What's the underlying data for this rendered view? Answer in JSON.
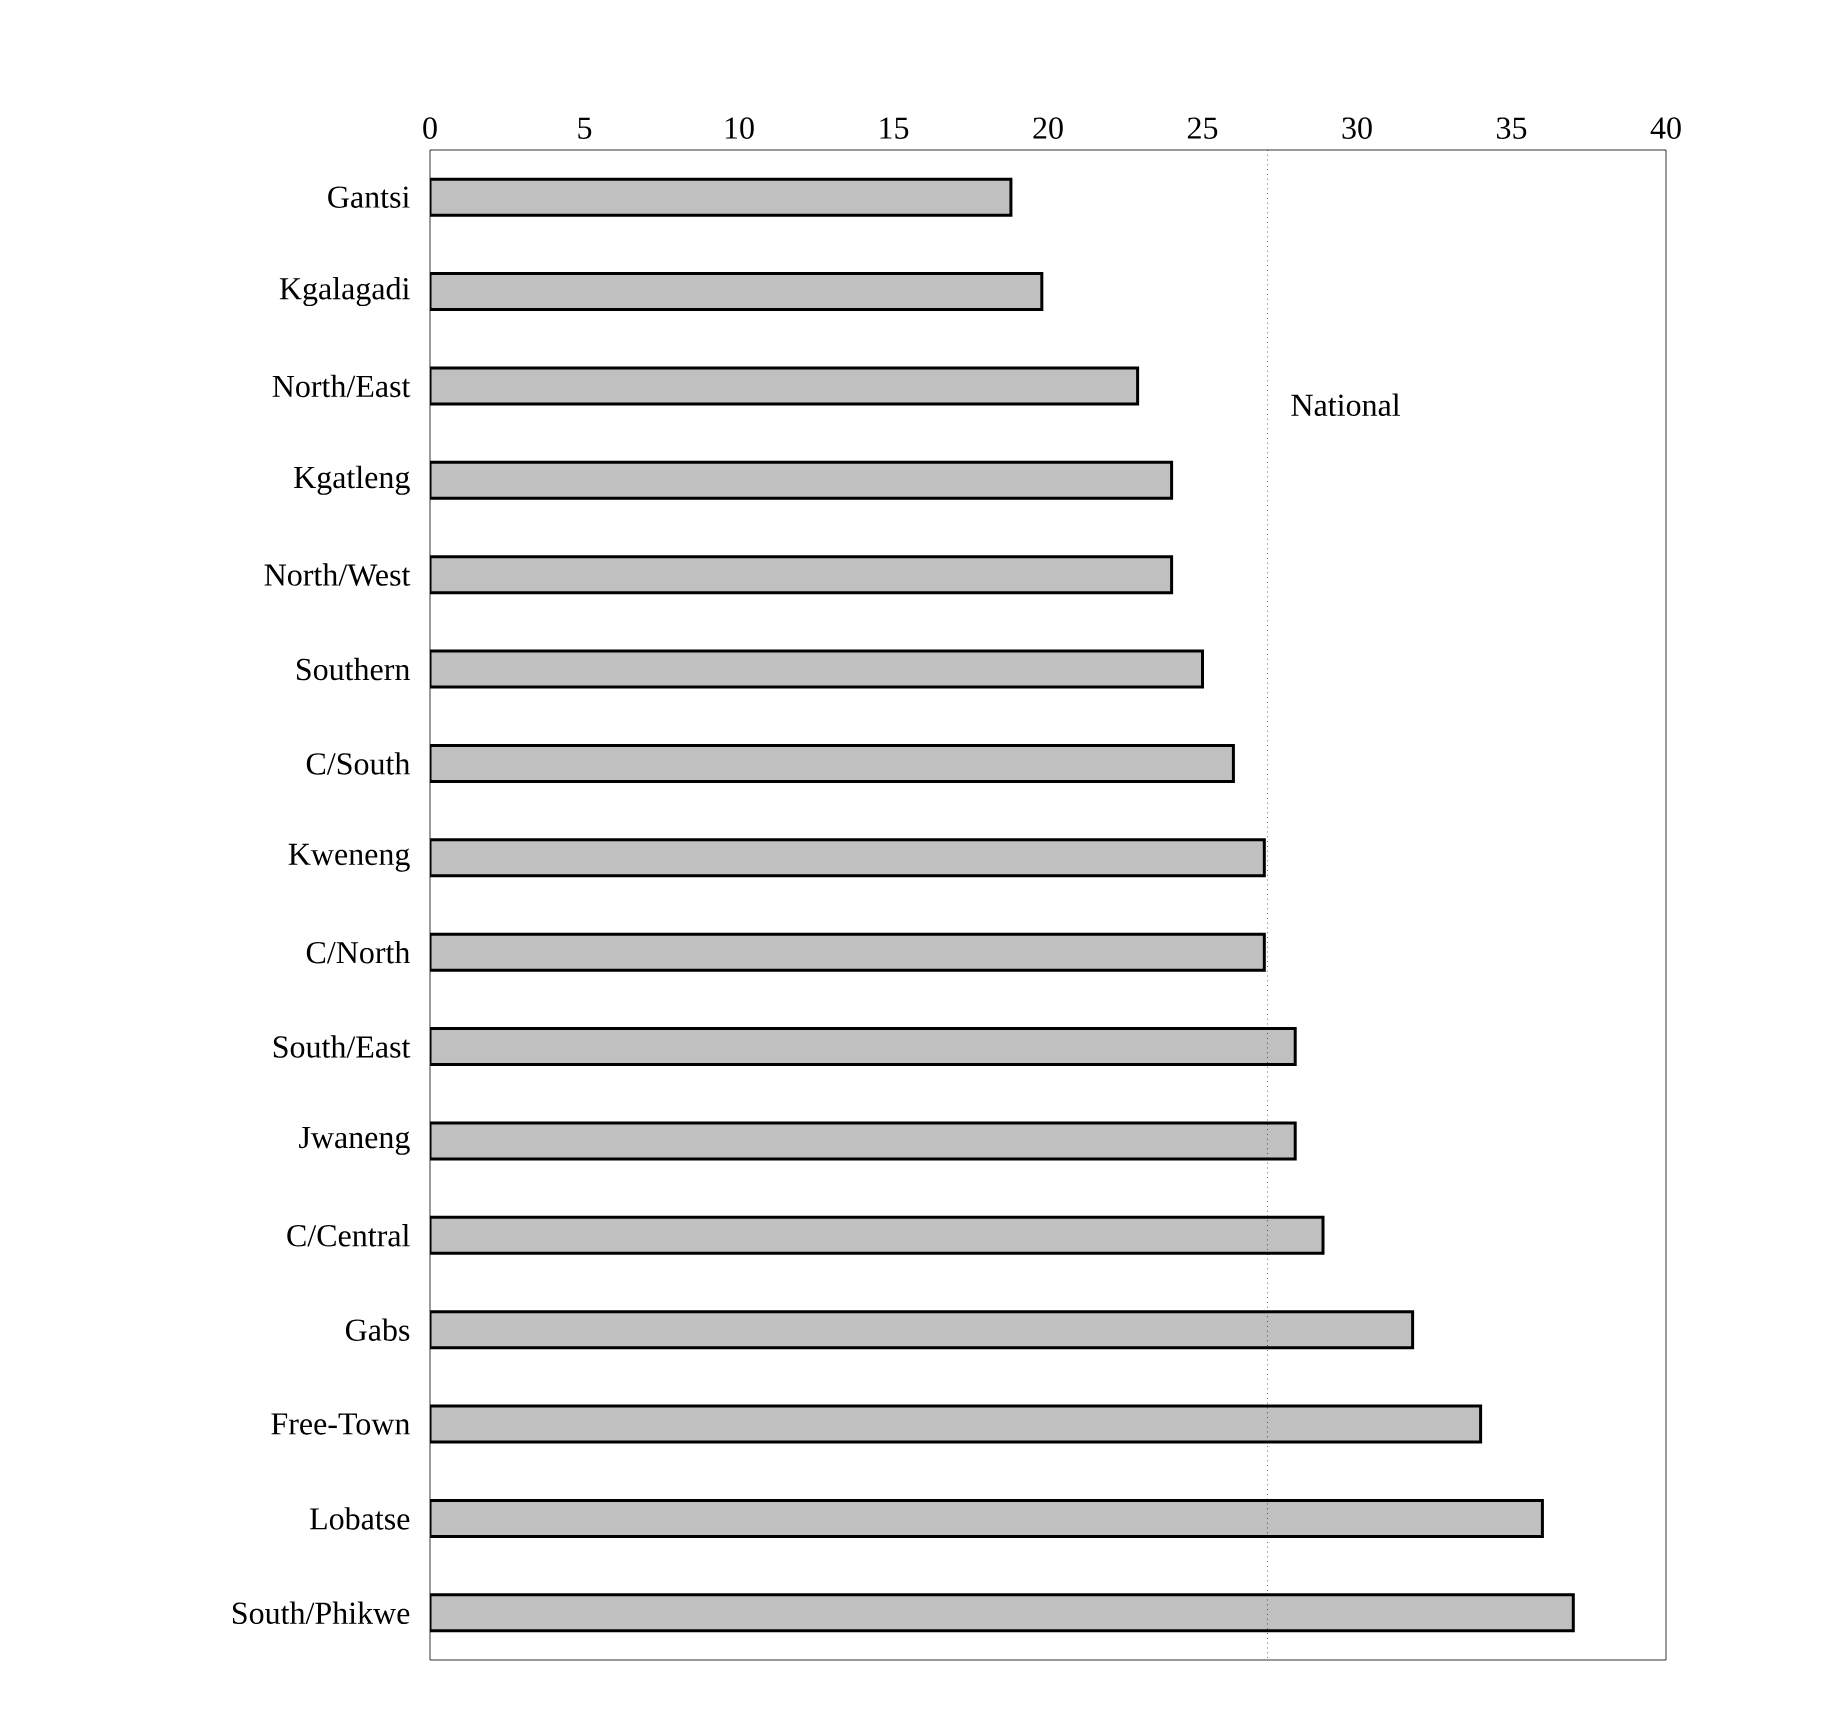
{
  "chart_data": {
    "type": "bar",
    "orientation": "horizontal",
    "categories": [
      "Gantsi",
      "Kgalagadi",
      "North/East",
      "Kgatleng",
      "North/West",
      "Southern",
      "C/South",
      "Kweneng",
      "C/North",
      "South/East",
      "Jwaneng",
      "C/Central",
      "Gabs",
      "Free-Town",
      "Lobatse",
      "South/Phikwe"
    ],
    "values": [
      18.8,
      19.8,
      22.9,
      24.0,
      24.0,
      25.0,
      26.0,
      27.0,
      27.0,
      28.0,
      28.0,
      28.9,
      31.8,
      34.0,
      36.0,
      37.0
    ],
    "color": "#c0c0c0",
    "xlim": [
      0,
      40
    ],
    "xticks": [
      0,
      5,
      10,
      15,
      20,
      25,
      30,
      35,
      40
    ],
    "ref_lines": [
      {
        "axis": "x",
        "value": 27.1,
        "label": "National",
        "line_style": "dotted"
      }
    ]
  }
}
